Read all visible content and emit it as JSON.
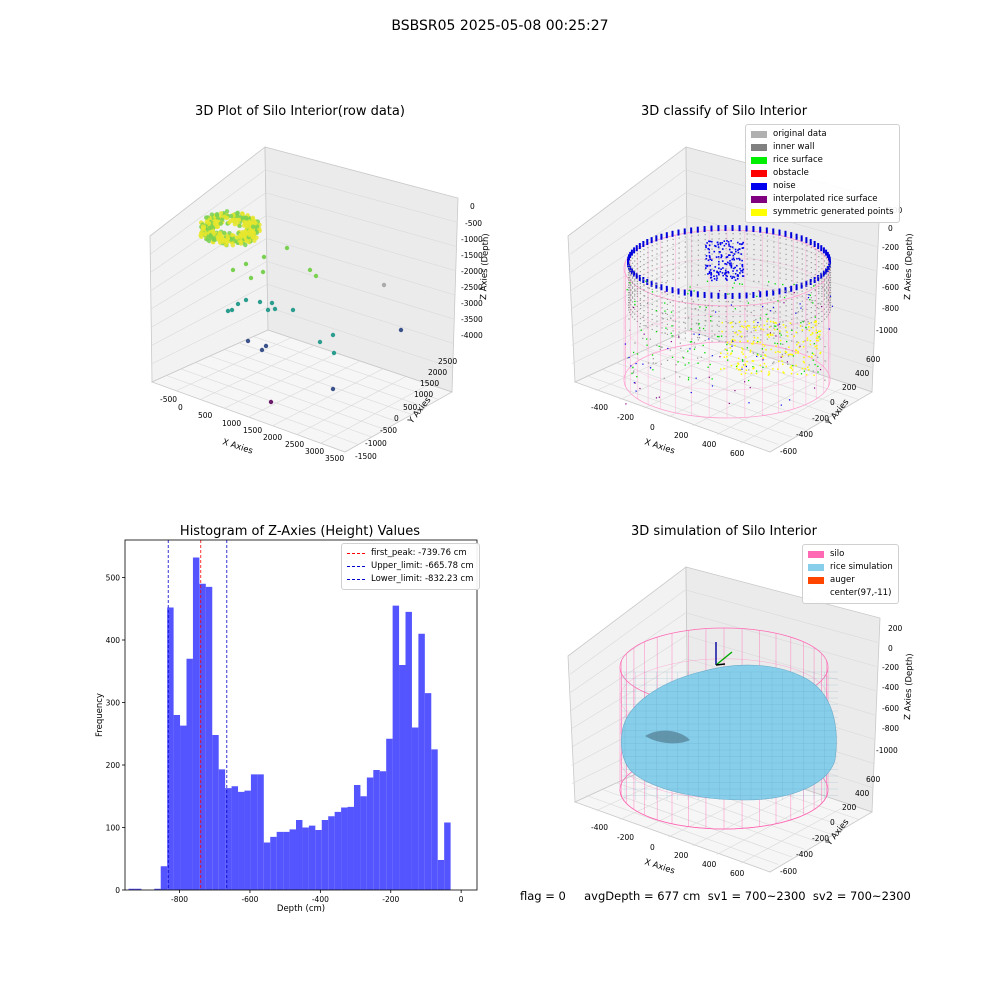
{
  "suptitle": "BSBSR05 2025-05-08 00:25:27",
  "footer": "flag = 0     avgDepth = 677 cm  sv1 = 700~2300  sv2 = 700~2300",
  "chart_data": [
    {
      "type": "scatter",
      "title": "3D Plot of Silo Interior(row data)",
      "xlabel": "X Axies",
      "ylabel": "Y Axies",
      "zlabel": "Z Axies (Depth)",
      "x_ticks": [
        "-500",
        "0",
        "500",
        "1000",
        "1500",
        "2000",
        "2500",
        "3000",
        "3500"
      ],
      "y_ticks": [
        "-1500",
        "-1000",
        "-500",
        "0",
        "500",
        "1000",
        "1500",
        "2000",
        "2500"
      ],
      "z_ticks": [
        "0",
        "-500",
        "-1000",
        "-1500",
        "-2000",
        "-2500",
        "-3000",
        "-3500",
        "-4000"
      ],
      "colors": {
        "dense_cluster": "#e6e62e",
        "scatter_hi": "#7ad151",
        "scatter_mid": "#2a9d8f",
        "scatter_low": "#3b528b",
        "scatter_min": "#6a1b6a"
      }
    },
    {
      "type": "scatter",
      "title": "3D classify of Silo Interior",
      "xlabel": "X Axies",
      "ylabel": "Y Axies",
      "zlabel": "Z Axies (Depth)",
      "x_ticks": [
        "-400",
        "-200",
        "0",
        "200",
        "400",
        "600"
      ],
      "y_ticks": [
        "-600",
        "-400",
        "-200",
        "0",
        "200",
        "400",
        "600"
      ],
      "z_ticks": [
        "200",
        "0",
        "-200",
        "-400",
        "-600",
        "-800",
        "-1000"
      ],
      "legend": [
        {
          "label": "original data",
          "color": "#b0b0b0"
        },
        {
          "label": "inner wall",
          "color": "#808080"
        },
        {
          "label": "rice surface",
          "color": "#00ee00"
        },
        {
          "label": "obstacle",
          "color": "#ff0000"
        },
        {
          "label": "noise",
          "color": "#0000ee"
        },
        {
          "label": "interpolated rice surface",
          "color": "#800080"
        },
        {
          "label": "symmetric generated points",
          "color": "#ffff00"
        }
      ]
    },
    {
      "type": "bar",
      "title": "Histogram of Z-Axies (Height) Values",
      "xlabel": "Depth (cm)",
      "ylabel": "Frequency",
      "bar_color": "#4c4cff",
      "xlim": [
        -955,
        45
      ],
      "ylim": [
        0,
        560
      ],
      "x_ticks": [
        -800,
        -600,
        -400,
        -200,
        0
      ],
      "y_ticks": [
        0,
        100,
        200,
        300,
        400,
        500
      ],
      "bin_start": -945,
      "bin_width": 18.3,
      "values": [
        2,
        2,
        0,
        0,
        2,
        38,
        452,
        280,
        263,
        370,
        532,
        490,
        485,
        248,
        193,
        163,
        166,
        157,
        159,
        185,
        185,
        76,
        85,
        93,
        93,
        97,
        112,
        100,
        103,
        96,
        112,
        118,
        125,
        132,
        133,
        168,
        150,
        180,
        192,
        190,
        242,
        455,
        360,
        445,
        260,
        410,
        315,
        225,
        48,
        108
      ],
      "vlines": [
        {
          "label": "first_peak: -739.76 cm",
          "x": -739.76,
          "color": "#ff0000"
        },
        {
          "label": "Upper_limit: -665.78 cm",
          "x": -665.78,
          "color": "#0000cc"
        },
        {
          "label": "Lower_limit: -832.23 cm",
          "x": -832.23,
          "color": "#0000cc"
        }
      ]
    },
    {
      "type": "area",
      "title": "3D simulation of Silo Interior",
      "xlabel": "X Axies",
      "ylabel": "Y Axies",
      "zlabel": "Z Axies (Depth)",
      "x_ticks": [
        "-400",
        "-200",
        "0",
        "200",
        "400",
        "600"
      ],
      "y_ticks": [
        "-600",
        "-400",
        "-200",
        "0",
        "200",
        "400",
        "600"
      ],
      "z_ticks": [
        "200",
        "0",
        "-200",
        "-400",
        "-600",
        "-800",
        "-1000"
      ],
      "legend": [
        {
          "label": "silo",
          "color": "#ff69b4"
        },
        {
          "label": "rice simulation",
          "color": "#87ceeb"
        },
        {
          "label": "auger",
          "color": "#ff4500"
        },
        {
          "label": "center(97,-11)",
          "color": ""
        }
      ]
    }
  ]
}
